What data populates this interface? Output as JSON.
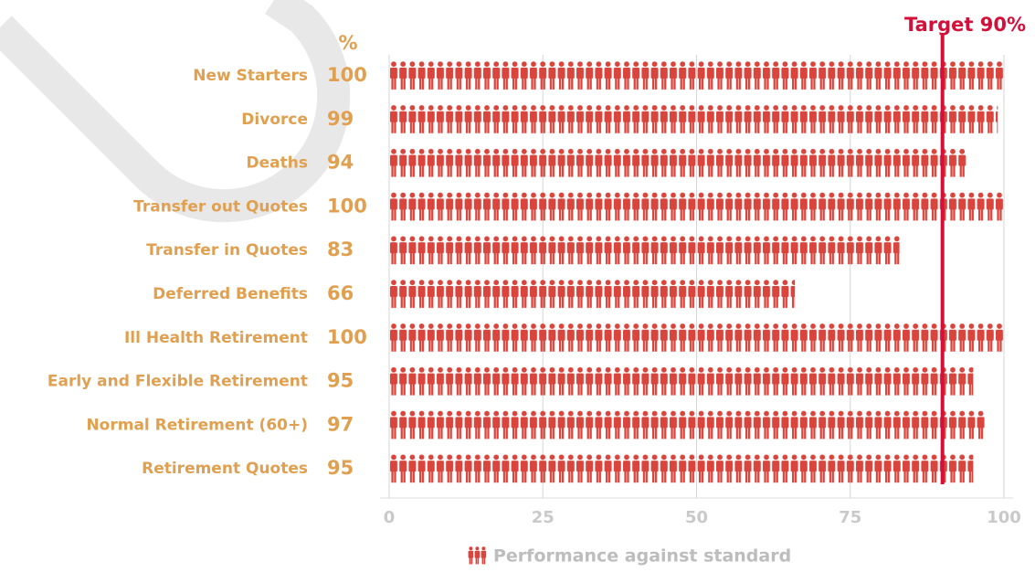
{
  "chart_data": {
    "type": "bar",
    "value_header": "%",
    "categories": [
      "New Starters",
      "Divorce",
      "Deaths",
      "Transfer out Quotes",
      "Transfer in Quotes",
      "Deferred Benefits",
      "Ill Health Retirement",
      "Early and Flexible Retirement",
      "Normal Retirement (60+)",
      "Retirement Quotes"
    ],
    "series": [
      {
        "name": "Performance against standard",
        "color": "#d9453d",
        "values": [
          100,
          99,
          94,
          100,
          83,
          66,
          100,
          95,
          97,
          95
        ]
      }
    ],
    "xlim": [
      0,
      100
    ],
    "xticks": [
      0,
      25,
      50,
      75,
      100
    ],
    "grid": true,
    "target": {
      "value": 90,
      "label": "Target 90%",
      "color": "#d4103a"
    }
  }
}
